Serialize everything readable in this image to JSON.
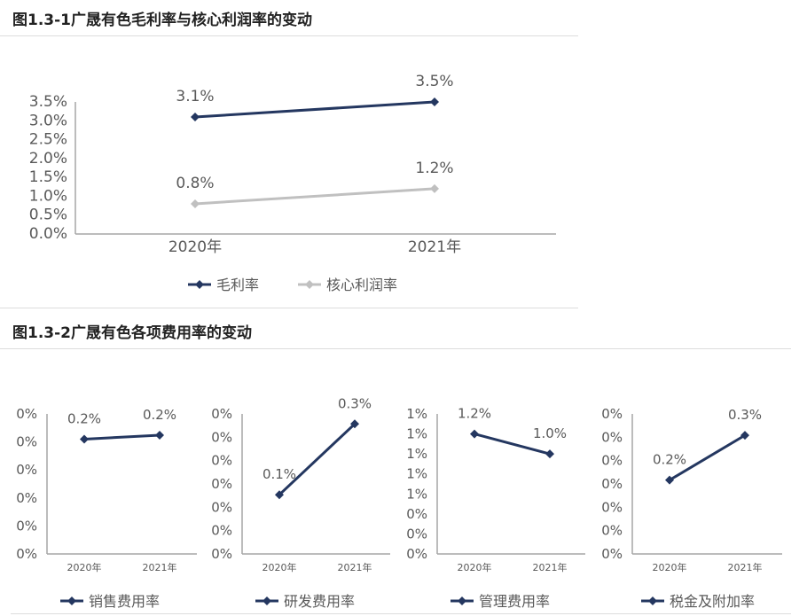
{
  "titles": {
    "fig1": "图1.3-1广晟有色毛利率与核心利润率的变动",
    "fig2": "图1.3-2广晟有色各项费用率的变动"
  },
  "colors": {
    "primary": "#243760",
    "secondary": "#c0c0c0",
    "axis": "#a6a6a6",
    "text": "#595959"
  },
  "chart_data": [
    {
      "type": "line",
      "categories": [
        "2020年",
        "2021年"
      ],
      "ylim": [
        0,
        3.5
      ],
      "yticks": [
        "0.0%",
        "0.5%",
        "1.0%",
        "1.5%",
        "2.0%",
        "2.5%",
        "3.0%",
        "3.5%"
      ],
      "legend": "bottom",
      "series": [
        {
          "name": "毛利率",
          "values": [
            3.1,
            3.5
          ],
          "labels": [
            "3.1%",
            "3.5%"
          ],
          "color": "#243760"
        },
        {
          "name": "核心利润率",
          "values": [
            0.8,
            1.2
          ],
          "labels": [
            "0.8%",
            "1.2%"
          ],
          "color": "#c0c0c0"
        }
      ]
    },
    {
      "type": "line",
      "categories": [
        "2020年",
        "2021年"
      ],
      "ylim": [
        0,
        0.25
      ],
      "yticks": [
        "0%",
        "0%",
        "0%",
        "0%",
        "0%",
        "0%"
      ],
      "legend": "bottom",
      "series": [
        {
          "name": "销售费用率",
          "values": [
            0.205,
            0.212
          ],
          "labels": [
            "0.2%",
            "0.2%"
          ],
          "color": "#243760"
        }
      ]
    },
    {
      "type": "line",
      "categories": [
        "2020年",
        "2021年"
      ],
      "ylim": [
        0,
        0.35
      ],
      "yticks": [
        "0%",
        "0%",
        "0%",
        "0%",
        "0%",
        "0%",
        "0%"
      ],
      "legend": "bottom",
      "series": [
        {
          "name": "研发费用率",
          "values": [
            0.148,
            0.325
          ],
          "labels": [
            "0.1%",
            "0.3%"
          ],
          "color": "#243760"
        }
      ]
    },
    {
      "type": "line",
      "categories": [
        "2020年",
        "2021年"
      ],
      "ylim": [
        0,
        1.4
      ],
      "yticks": [
        "0%",
        "0%",
        "0%",
        "1%",
        "1%",
        "1%",
        "1%",
        "1%"
      ],
      "legend": "bottom",
      "series": [
        {
          "name": "管理费用率",
          "values": [
            1.2,
            1.0
          ],
          "labels": [
            "1.2%",
            "1.0%"
          ],
          "color": "#243760"
        }
      ]
    },
    {
      "type": "line",
      "categories": [
        "2020年",
        "2021年"
      ],
      "ylim": [
        0,
        0.36
      ],
      "yticks": [
        "0%",
        "0%",
        "0%",
        "0%",
        "0%",
        "0%",
        "0%"
      ],
      "legend": "bottom",
      "series": [
        {
          "name": "税金及附加率",
          "values": [
            0.19,
            0.305
          ],
          "labels": [
            "0.2%",
            "0.3%"
          ],
          "color": "#243760"
        }
      ]
    }
  ]
}
